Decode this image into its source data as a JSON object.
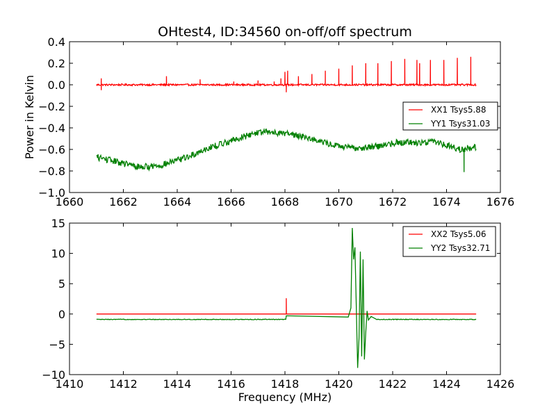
{
  "title": "OHtest4, ID:34560 on-off/off spectrum",
  "chart_data": [
    {
      "type": "line",
      "xlabel": "",
      "ylabel": "Power in Kelvin",
      "xlim": [
        1660,
        1676
      ],
      "ylim": [
        -1.0,
        0.4
      ],
      "xticks": [
        "1660",
        "1662",
        "1664",
        "1666",
        "1668",
        "1670",
        "1672",
        "1674",
        "1676"
      ],
      "yticks": [
        "−1.0",
        "−0.8",
        "−0.6",
        "−0.4",
        "−0.2",
        "0.0",
        "0.2",
        "0.4"
      ],
      "legend": "right",
      "series": [
        {
          "name": "XX1 Tsys5.88",
          "color": "#ff0000",
          "baseline": 0.0,
          "x_range": [
            1661.0,
            1675.1
          ],
          "spikes": [
            {
              "x": 1661.18,
              "y": 0.06
            },
            {
              "x": 1663.6,
              "y": 0.08
            },
            {
              "x": 1664.85,
              "y": 0.05
            },
            {
              "x": 1666.1,
              "y": 0.03
            },
            {
              "x": 1667.0,
              "y": 0.04
            },
            {
              "x": 1667.6,
              "y": 0.03
            },
            {
              "x": 1667.85,
              "y": 0.06
            },
            {
              "x": 1668.0,
              "y": 0.12
            },
            {
              "x": 1668.1,
              "y": 0.13
            },
            {
              "x": 1668.5,
              "y": 0.08
            },
            {
              "x": 1669.0,
              "y": 0.1
            },
            {
              "x": 1669.5,
              "y": 0.13
            },
            {
              "x": 1670.0,
              "y": 0.15
            },
            {
              "x": 1670.5,
              "y": 0.18
            },
            {
              "x": 1671.0,
              "y": 0.2
            },
            {
              "x": 1671.45,
              "y": 0.2
            },
            {
              "x": 1671.95,
              "y": 0.22
            },
            {
              "x": 1672.45,
              "y": 0.24
            },
            {
              "x": 1672.9,
              "y": 0.23
            },
            {
              "x": 1673.0,
              "y": 0.2
            },
            {
              "x": 1673.4,
              "y": 0.23
            },
            {
              "x": 1673.9,
              "y": 0.23
            },
            {
              "x": 1674.4,
              "y": 0.25
            },
            {
              "x": 1674.9,
              "y": 0.26
            }
          ],
          "dips": [
            {
              "x": 1661.18,
              "y": -0.05
            },
            {
              "x": 1668.05,
              "y": -0.07
            }
          ]
        },
        {
          "name": "YY1 Tsys31.03",
          "color": "#008000",
          "x_range": [
            1661.0,
            1675.1
          ],
          "x": [
            1661.0,
            1661.5,
            1662.0,
            1662.5,
            1663.0,
            1663.5,
            1664.0,
            1664.5,
            1665.0,
            1665.5,
            1666.0,
            1666.5,
            1667.0,
            1667.5,
            1668.0,
            1668.5,
            1669.0,
            1669.5,
            1670.0,
            1670.5,
            1671.0,
            1671.5,
            1672.0,
            1672.5,
            1673.0,
            1673.5,
            1674.0,
            1674.5,
            1675.1
          ],
          "y": [
            -0.67,
            -0.7,
            -0.73,
            -0.76,
            -0.76,
            -0.74,
            -0.7,
            -0.66,
            -0.6,
            -0.56,
            -0.52,
            -0.48,
            -0.44,
            -0.44,
            -0.45,
            -0.47,
            -0.5,
            -0.54,
            -0.57,
            -0.59,
            -0.58,
            -0.57,
            -0.54,
            -0.53,
            -0.54,
            -0.52,
            -0.56,
            -0.6,
            -0.58
          ],
          "dips": [
            {
              "x": 1674.65,
              "y": -0.81
            }
          ]
        }
      ]
    },
    {
      "type": "line",
      "xlabel": "Frequency (MHz)",
      "ylabel": "",
      "xlim": [
        1410,
        1426
      ],
      "ylim": [
        -10,
        15
      ],
      "xticks": [
        "1410",
        "1412",
        "1414",
        "1416",
        "1418",
        "1420",
        "1422",
        "1424",
        "1426"
      ],
      "yticks": [
        "−10",
        "−5",
        "0",
        "5",
        "10",
        "15"
      ],
      "legend": "top-right",
      "series": [
        {
          "name": "XX2 Tsys5.06",
          "color": "#ff0000",
          "baseline": 0.0,
          "x_range": [
            1411.0,
            1425.1
          ],
          "spikes": [
            {
              "x": 1418.05,
              "y": 2.6
            }
          ]
        },
        {
          "name": "YY2 Tsys32.71",
          "color": "#008000",
          "baseline": -0.9,
          "x_range": [
            1411.0,
            1425.1
          ],
          "features": [
            {
              "x": 1418.05,
              "y": -0.3
            },
            {
              "x": 1420.35,
              "y": -0.5
            },
            {
              "x": 1420.45,
              "y": 1.0
            },
            {
              "x": 1420.5,
              "y": 14.2
            },
            {
              "x": 1420.55,
              "y": 9.0
            },
            {
              "x": 1420.6,
              "y": 11.0
            },
            {
              "x": 1420.65,
              "y": 1.0
            },
            {
              "x": 1420.7,
              "y": -8.9
            },
            {
              "x": 1420.75,
              "y": -4.0
            },
            {
              "x": 1420.8,
              "y": 10.3
            },
            {
              "x": 1420.85,
              "y": -7.0
            },
            {
              "x": 1420.9,
              "y": 9.0
            },
            {
              "x": 1420.95,
              "y": -7.5
            },
            {
              "x": 1421.0,
              "y": -3.0
            },
            {
              "x": 1421.05,
              "y": 0.5
            },
            {
              "x": 1421.1,
              "y": -1.0
            },
            {
              "x": 1421.2,
              "y": -0.4
            },
            {
              "x": 1421.4,
              "y": -0.9
            }
          ]
        }
      ]
    }
  ]
}
